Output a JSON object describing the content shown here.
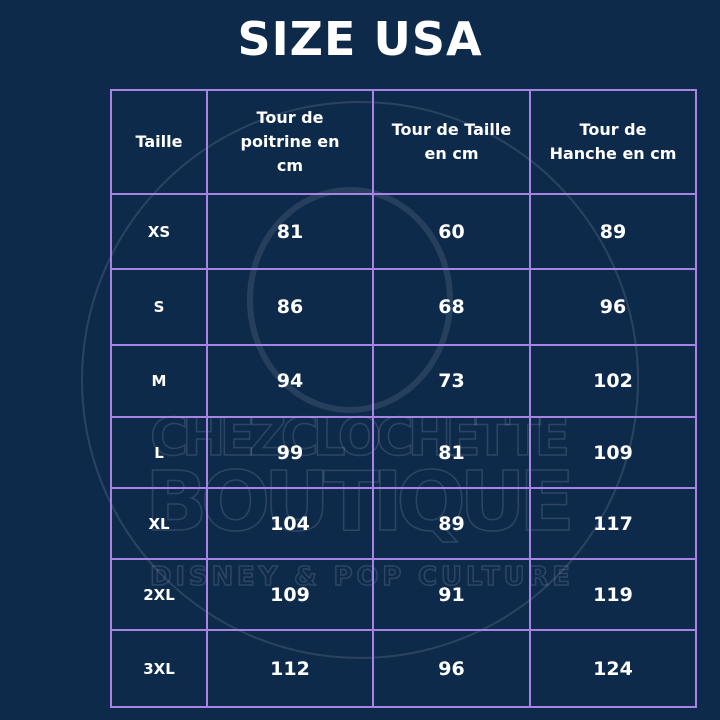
{
  "title": "SIZE USA",
  "watermark": {
    "line1": "CHEZCLOCHETTE",
    "line2": "BOUTIQUE",
    "line3": "DISNEY & POP CULTURE"
  },
  "colors": {
    "background": "#0e2a4b",
    "grid": "#a783e6",
    "text": "#ffffff"
  },
  "table": {
    "headers": [
      "Taille",
      "Tour de poitrine en cm",
      "Tour de Taille en cm",
      "Tour de Hanche en cm"
    ],
    "rows": [
      [
        "XS",
        "81",
        "60",
        "89"
      ],
      [
        "S",
        "86",
        "68",
        "96"
      ],
      [
        "M",
        "94",
        "73",
        "102"
      ],
      [
        "L",
        "99",
        "81",
        "109"
      ],
      [
        "XL",
        "104",
        "89",
        "117"
      ],
      [
        "2XL",
        "109",
        "91",
        "119"
      ],
      [
        "3XL",
        "112",
        "96",
        "124"
      ]
    ]
  }
}
